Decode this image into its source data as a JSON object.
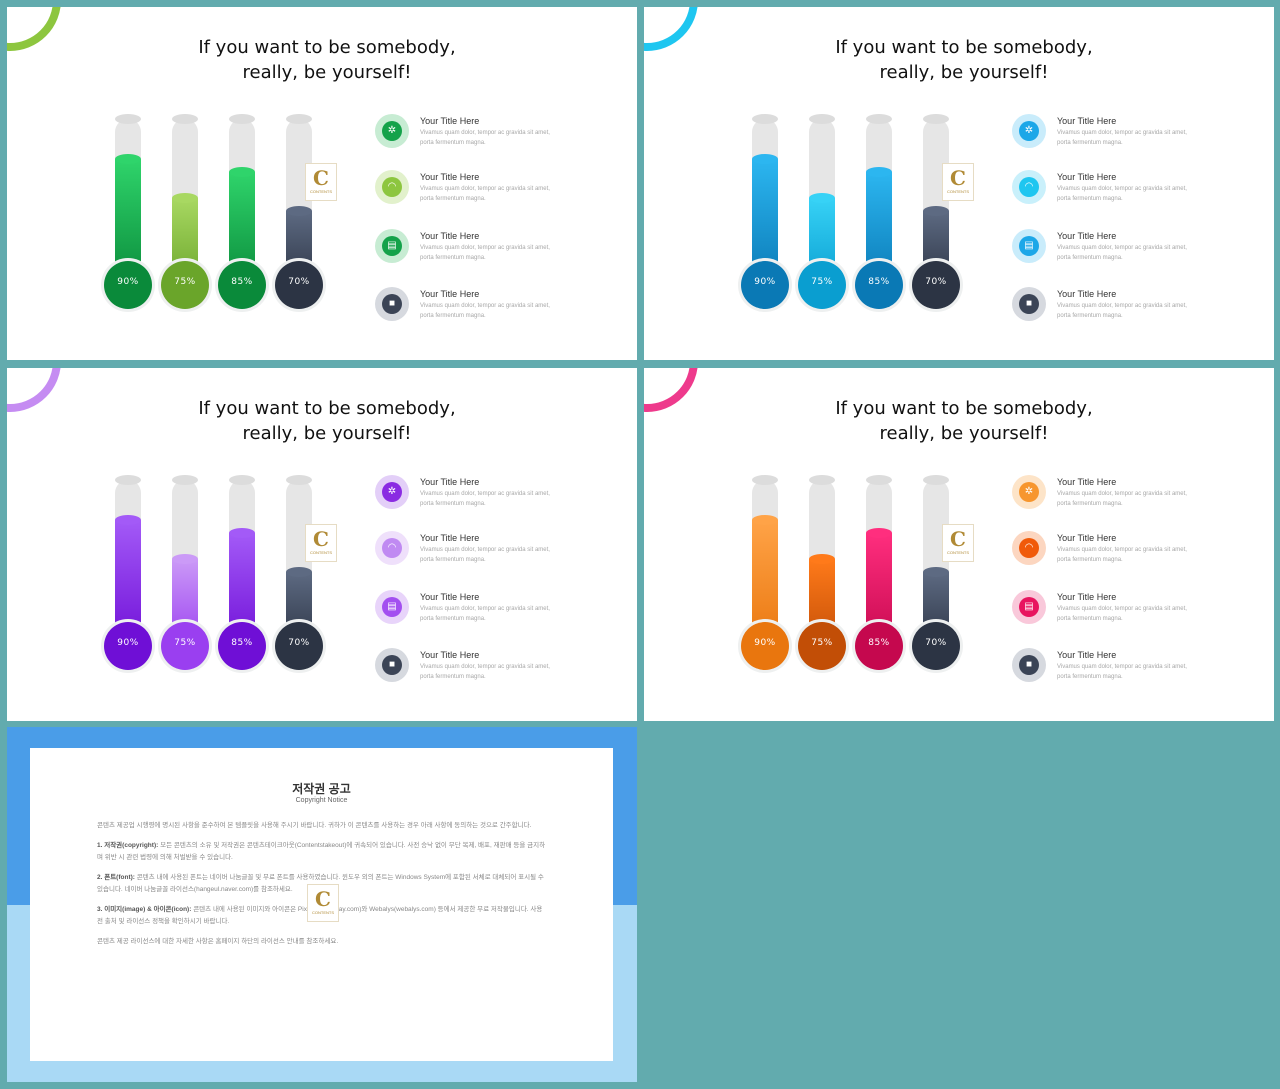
{
  "slides": [
    {
      "headline": [
        "If you want to be somebody,",
        "really, be yourself!"
      ],
      "accent": "#8dc63f",
      "logo": {
        "letter": "C",
        "text": "CONTENTS"
      },
      "bars": [
        {
          "label": "90%",
          "value": 0.9,
          "top": "#2fd46b",
          "bottom": "#0a8a3a"
        },
        {
          "label": "75%",
          "value": 0.75,
          "top": "#a8d862",
          "bottom": "#6aa52a"
        },
        {
          "label": "85%",
          "value": 0.85,
          "top": "#2fd46b",
          "bottom": "#0a8a3a"
        },
        {
          "label": "70%",
          "value": 0.7,
          "top": "#5d6a82",
          "bottom": "#2c3444"
        }
      ],
      "items": [
        {
          "icon": "gear-icon",
          "glyph": "✲",
          "color": "#14a24a",
          "ring": "#c7ecd3",
          "title": "Your Title Here",
          "desc": "Vivamus quam dolor, tempor ac gravida sit amet, porta fermentum magna."
        },
        {
          "icon": "wifi-icon",
          "glyph": "◠",
          "color": "#8dc63f",
          "ring": "#e2f1cc",
          "title": "Your Title Here",
          "desc": "Vivamus quam dolor, tempor ac gravida sit amet, porta fermentum magna."
        },
        {
          "icon": "clipboard-icon",
          "glyph": "▤",
          "color": "#14a24a",
          "ring": "#c7ecd3",
          "title": "Your Title Here",
          "desc": "Vivamus quam dolor, tempor ac gravida sit amet, porta fermentum magna."
        },
        {
          "icon": "lock-icon",
          "glyph": "■",
          "color": "#3b4456",
          "ring": "#d6d9df",
          "title": "Your Title Here",
          "desc": "Vivamus quam dolor, tempor ac gravida sit amet, porta fermentum magna."
        }
      ]
    },
    {
      "headline": [
        "If you want to be somebody,",
        "really, be yourself!"
      ],
      "accent": "#1ec6f0",
      "logo": {
        "letter": "C",
        "text": "CONTENTS"
      },
      "bars": [
        {
          "label": "90%",
          "value": 0.9,
          "top": "#2cb6f0",
          "bottom": "#0a79b5"
        },
        {
          "label": "75%",
          "value": 0.75,
          "top": "#37d2f6",
          "bottom": "#0a9ed0"
        },
        {
          "label": "85%",
          "value": 0.85,
          "top": "#2cb6f0",
          "bottom": "#0a79b5"
        },
        {
          "label": "70%",
          "value": 0.7,
          "top": "#5d6a82",
          "bottom": "#2c3444"
        }
      ],
      "items": [
        {
          "icon": "gear-icon",
          "glyph": "✲",
          "color": "#1ca7e8",
          "ring": "#c9ecfb",
          "title": "Your Title Here",
          "desc": "Vivamus quam dolor, tempor ac gravida sit amet, porta fermentum magna."
        },
        {
          "icon": "wifi-icon",
          "glyph": "◠",
          "color": "#1ec6f0",
          "ring": "#c9f0fb",
          "title": "Your Title Here",
          "desc": "Vivamus quam dolor, tempor ac gravida sit amet, porta fermentum magna."
        },
        {
          "icon": "clipboard-icon",
          "glyph": "▤",
          "color": "#1ca7e8",
          "ring": "#c9ecfb",
          "title": "Your Title Here",
          "desc": "Vivamus quam dolor, tempor ac gravida sit amet, porta fermentum magna."
        },
        {
          "icon": "lock-icon",
          "glyph": "■",
          "color": "#3b4456",
          "ring": "#d6d9df",
          "title": "Your Title Here",
          "desc": "Vivamus quam dolor, tempor ac gravida sit amet, porta fermentum magna."
        }
      ]
    },
    {
      "headline": [
        "If you want to be somebody,",
        "really, be yourself!"
      ],
      "accent": "#c58cf2",
      "logo": {
        "letter": "C",
        "text": "CONTENTS"
      },
      "bars": [
        {
          "label": "90%",
          "value": 0.9,
          "top": "#a35af7",
          "bottom": "#6f0fd6"
        },
        {
          "label": "75%",
          "value": 0.75,
          "top": "#cb9af7",
          "bottom": "#9a3ff0"
        },
        {
          "label": "85%",
          "value": 0.85,
          "top": "#a35af7",
          "bottom": "#6f0fd6"
        },
        {
          "label": "70%",
          "value": 0.7,
          "top": "#5d6a82",
          "bottom": "#2c3444"
        }
      ],
      "items": [
        {
          "icon": "gear-icon",
          "glyph": "✲",
          "color": "#8a2be2",
          "ring": "#e3cff8",
          "title": "Your Title Here",
          "desc": "Vivamus quam dolor, tempor ac gravida sit amet, porta fermentum magna."
        },
        {
          "icon": "wifi-icon",
          "glyph": "◠",
          "color": "#c08af2",
          "ring": "#efe0fb",
          "title": "Your Title Here",
          "desc": "Vivamus quam dolor, tempor ac gravida sit amet, porta fermentum magna."
        },
        {
          "icon": "clipboard-icon",
          "glyph": "▤",
          "color": "#a34ff0",
          "ring": "#e8d4fa",
          "title": "Your Title Here",
          "desc": "Vivamus quam dolor, tempor ac gravida sit amet, porta fermentum magna."
        },
        {
          "icon": "lock-icon",
          "glyph": "■",
          "color": "#3b4456",
          "ring": "#d6d9df",
          "title": "Your Title Here",
          "desc": "Vivamus quam dolor, tempor ac gravida sit amet, porta fermentum magna."
        }
      ]
    },
    {
      "headline": [
        "If you want to be somebody,",
        "really, be yourself!"
      ],
      "accent": "#ee3a8c",
      "logo": {
        "letter": "C",
        "text": "CONTENTS"
      },
      "bars": [
        {
          "label": "90%",
          "value": 0.9,
          "top": "#ffa347",
          "bottom": "#e9760e"
        },
        {
          "label": "75%",
          "value": 0.75,
          "top": "#ff7a1a",
          "bottom": "#c24e06"
        },
        {
          "label": "85%",
          "value": 0.85,
          "top": "#ff2e7e",
          "bottom": "#c5084e"
        },
        {
          "label": "70%",
          "value": 0.7,
          "top": "#5d6a82",
          "bottom": "#2c3444"
        }
      ],
      "items": [
        {
          "icon": "gear-icon",
          "glyph": "✲",
          "color": "#f7962e",
          "ring": "#fde4c8",
          "title": "Your Title Here",
          "desc": "Vivamus quam dolor, tempor ac gravida sit amet, porta fermentum magna."
        },
        {
          "icon": "wifi-icon",
          "glyph": "◠",
          "color": "#f05a0a",
          "ring": "#fcd6c0",
          "title": "Your Title Here",
          "desc": "Vivamus quam dolor, tempor ac gravida sit amet, porta fermentum magna."
        },
        {
          "icon": "clipboard-icon",
          "glyph": "▤",
          "color": "#e8145f",
          "ring": "#f9c8da",
          "title": "Your Title Here",
          "desc": "Vivamus quam dolor, tempor ac gravida sit amet, porta fermentum magna."
        },
        {
          "icon": "lock-icon",
          "glyph": "■",
          "color": "#3b4456",
          "ring": "#d6d9df",
          "title": "Your Title Here",
          "desc": "Vivamus quam dolor, tempor ac gravida sit amet, porta fermentum magna."
        }
      ]
    }
  ],
  "notice": {
    "title": "저작권 공고",
    "subtitle": "Copyright Notice",
    "logo": {
      "letter": "C",
      "text": "CONTENTS"
    },
    "paragraphs": [
      {
        "lead": "",
        "text": "콘텐츠 제공업 시행령에 명시된 사항을 준수하여 본 템플릿을 사용해 주시기 바랍니다. 귀하가 이 콘텐츠를 사용하는 경우 아래 사항에 동의하는 것으로 간주합니다."
      },
      {
        "lead": "1. 저작권(copyright): ",
        "text": "모든 콘텐츠의 소유 및 저작권은 콘텐츠테이크아웃(Contentstakeout)에 귀속되어 있습니다. 사전 승낙 없이 무단 복제, 배포, 재판매 등을 금지하며 위반 시 관련 법령에 의해 처벌받을 수 있습니다."
      },
      {
        "lead": "2. 폰트(font): ",
        "text": "콘텐츠 내에 사용된 폰트는 네이버 나눔글꼴 및 무료 폰트를 사용하였습니다. 윈도우 외의 폰트는 Windows System에 포함된 서체로 대체되어 표시될 수 있습니다. 네이버 나눔글꼴 라이선스(hangeul.naver.com)를 참조하세요."
      },
      {
        "lead": "3. 이미지(image) & 아이콘(icon): ",
        "text": "콘텐츠 내에 사용된 이미지와 아이콘은 Pixabay(pixabay.com)와 Webalys(webalys.com) 등에서 제공한 무료 저작물입니다. 사용 전 출처 및 라이선스 정책을 확인하시기 바랍니다."
      },
      {
        "lead": "",
        "text": "콘텐츠 제공 라이선스에 대한 자세한 사항은 홈페이지 하단의 라이선스 안내를 참조하세요."
      }
    ]
  }
}
